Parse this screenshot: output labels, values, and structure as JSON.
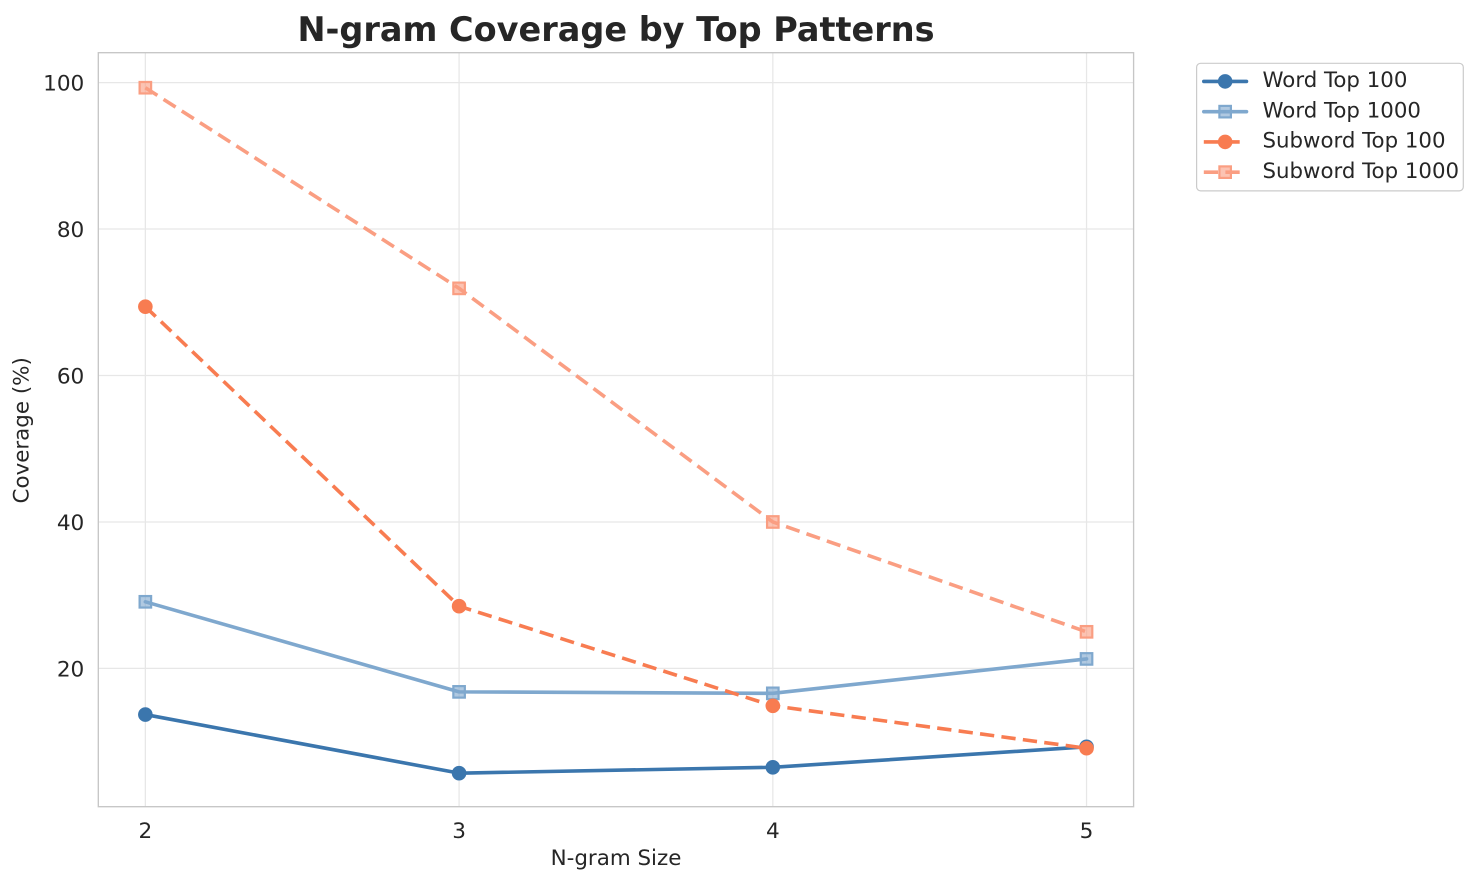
{
  "page": {
    "background": "#ffffff",
    "text_color": "#262626"
  },
  "chart_data": {
    "type": "line",
    "title": "N-gram Coverage by Top Patterns",
    "xlabel": "N-gram Size",
    "ylabel": "Coverage (%)",
    "x": [
      2,
      3,
      4,
      5
    ],
    "xticks": [
      2,
      3,
      4,
      5
    ],
    "yticks": [
      20,
      40,
      60,
      80,
      100
    ],
    "xlim": [
      1.85,
      5.15
    ],
    "ylim": [
      1.12,
      104.08
    ],
    "grid": true,
    "legend_position": "upper right outside axes",
    "series": [
      {
        "name": "Word Top 100",
        "values": [
          13.7,
          5.7,
          6.5,
          9.3
        ],
        "color": "#3b76ad",
        "line": "solid",
        "marker": "circle"
      },
      {
        "name": "Word Top 1000",
        "values": [
          29.1,
          16.8,
          16.6,
          21.3
        ],
        "color": "#7fa8ce",
        "line": "solid",
        "marker": "square"
      },
      {
        "name": "Subword Top 100",
        "values": [
          69.4,
          28.5,
          14.9,
          9.1
        ],
        "color": "#f87c51",
        "line": "dashed",
        "marker": "circle"
      },
      {
        "name": "Subword Top 1000",
        "values": [
          99.3,
          71.9,
          40.0,
          25.0
        ],
        "color": "#fa9e82",
        "line": "dashed",
        "marker": "square"
      }
    ]
  }
}
